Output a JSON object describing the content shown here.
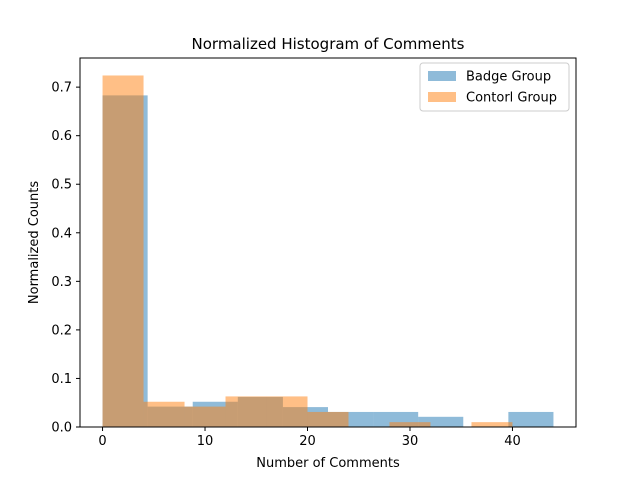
{
  "chart_data": {
    "type": "bar",
    "title": "Normalized Histogram of Comments",
    "xlabel": "Number of Comments",
    "ylabel": "Normalized Counts",
    "xlim": [
      -2.2,
      46.2
    ],
    "ylim": [
      0,
      0.76
    ],
    "xticks": [
      0,
      10,
      20,
      30,
      40
    ],
    "yticks": [
      0.0,
      0.1,
      0.2,
      0.3,
      0.4,
      0.5,
      0.6,
      0.7
    ],
    "grid": false,
    "legend_position": "top-right",
    "series": [
      {
        "name": "Badge Group",
        "color": "#1f77b4",
        "alpha": 0.5,
        "bins": [
          {
            "x0": 0.0,
            "x1": 4.4,
            "value": 0.683
          },
          {
            "x0": 4.4,
            "x1": 8.8,
            "value": 0.042
          },
          {
            "x0": 8.8,
            "x1": 13.2,
            "value": 0.052
          },
          {
            "x0": 13.2,
            "x1": 17.6,
            "value": 0.062
          },
          {
            "x0": 17.6,
            "x1": 22.0,
            "value": 0.041
          },
          {
            "x0": 22.0,
            "x1": 26.4,
            "value": 0.031
          },
          {
            "x0": 26.4,
            "x1": 30.8,
            "value": 0.031
          },
          {
            "x0": 30.8,
            "x1": 35.2,
            "value": 0.021
          },
          {
            "x0": 35.2,
            "x1": 39.6,
            "value": 0.0
          },
          {
            "x0": 39.6,
            "x1": 44.0,
            "value": 0.031
          }
        ]
      },
      {
        "name": "Contorl Group",
        "color": "#ff7f0e",
        "alpha": 0.5,
        "bins": [
          {
            "x0": 0.0,
            "x1": 4.0,
            "value": 0.724
          },
          {
            "x0": 4.0,
            "x1": 8.0,
            "value": 0.052
          },
          {
            "x0": 8.0,
            "x1": 12.0,
            "value": 0.042
          },
          {
            "x0": 12.0,
            "x1": 16.0,
            "value": 0.063
          },
          {
            "x0": 16.0,
            "x1": 20.0,
            "value": 0.063
          },
          {
            "x0": 20.0,
            "x1": 24.0,
            "value": 0.031
          },
          {
            "x0": 24.0,
            "x1": 28.0,
            "value": 0.0
          },
          {
            "x0": 28.0,
            "x1": 32.0,
            "value": 0.01
          },
          {
            "x0": 32.0,
            "x1": 36.0,
            "value": 0.0
          },
          {
            "x0": 36.0,
            "x1": 40.0,
            "value": 0.01
          }
        ]
      }
    ]
  }
}
